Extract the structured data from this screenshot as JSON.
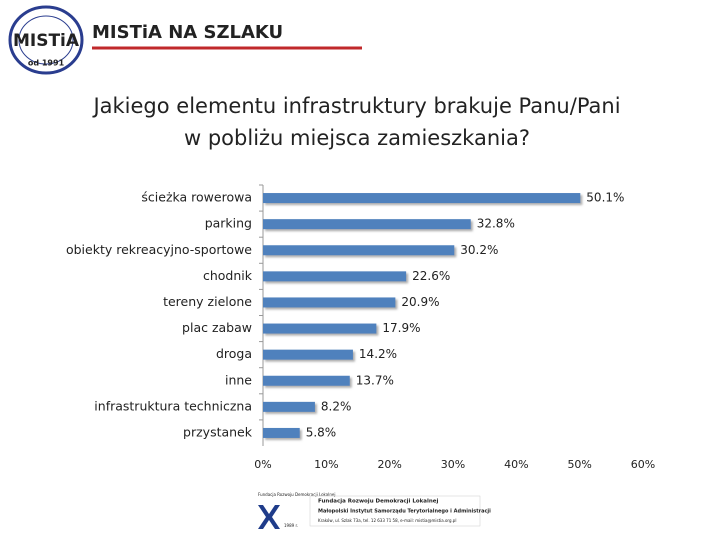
{
  "header": {
    "logo": "MISTiA",
    "logo_since": "od 1991",
    "title": "MISTiA NA SZLAKU"
  },
  "chart_data": {
    "type": "bar",
    "orientation": "horizontal",
    "title": [
      "Jakiego elementu infrastruktury brakuje Panu/Pani",
      "w pobliżu miejsca zamieszkania?"
    ],
    "categories": [
      "ścieżka rowerowa",
      "parking",
      "obiekty rekreacyjno-sportowe",
      "chodnik",
      "tereny zielone",
      "plac zabaw",
      "droga",
      "inne",
      "infrastruktura techniczna",
      "przystanek"
    ],
    "values": [
      50.1,
      32.8,
      30.2,
      22.6,
      20.9,
      17.9,
      14.2,
      13.7,
      8.2,
      5.8
    ],
    "value_labels": [
      "50.1%",
      "32.8%",
      "30.2%",
      "22.6%",
      "20.9%",
      "17.9%",
      "14.2%",
      "13.7%",
      "8.2%",
      "5.8%"
    ],
    "color": "#4f81bd",
    "xlim": [
      0,
      60
    ],
    "xticks": [
      {
        "value": 0,
        "label": "0%"
      },
      {
        "value": 10,
        "label": "10%"
      },
      {
        "value": 20,
        "label": "20%"
      },
      {
        "value": 30,
        "label": "30%"
      },
      {
        "value": 40,
        "label": "40%"
      },
      {
        "value": 50,
        "label": "50%"
      },
      {
        "value": 60,
        "label": "60%"
      }
    ]
  },
  "footer": {
    "logo_text": "Fundacja Rozwoju Demokracji Lokalnej",
    "logo_year": "1989 r.",
    "line1": "Fundacja Rozwoju Demokracji Lokalnej",
    "line2": "Małopolski Instytut Samorządu Terytorialnego i Administracji",
    "line3": "Kraków, ul. Szlak 73a, tel. 12 633 71 58, e-mail: mistia@mistia.org.pl"
  }
}
